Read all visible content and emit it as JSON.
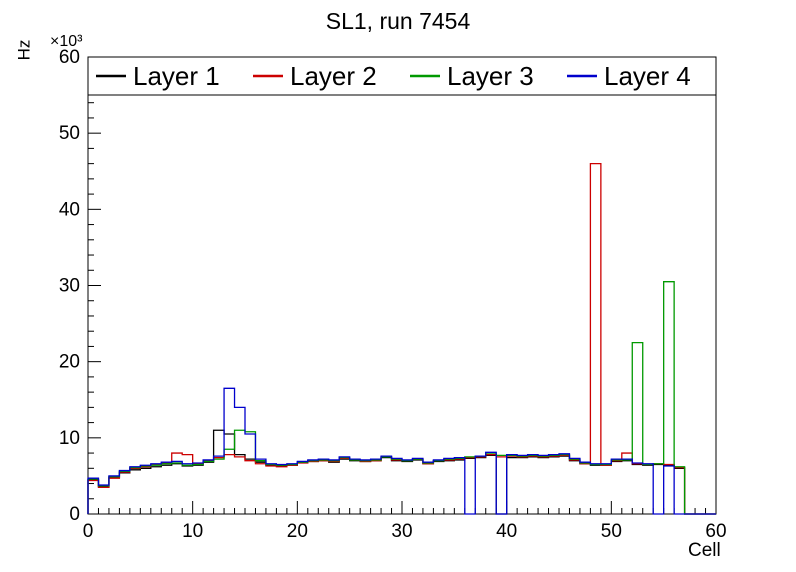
{
  "chart_data": {
    "type": "line",
    "style": "histogram-step",
    "title": "SL1, run 7454",
    "xlabel": "Cell",
    "ylabel": "Hz",
    "y_multiplier": "×10³",
    "xlim": [
      0,
      60
    ],
    "ylim": [
      0,
      60
    ],
    "x_ticks": [
      0,
      10,
      20,
      30,
      40,
      50,
      60
    ],
    "y_ticks": [
      0,
      10,
      20,
      30,
      40,
      50,
      60
    ],
    "bin_width": 1,
    "legend_position": "top",
    "grid": false,
    "series": [
      {
        "name": "Layer 1",
        "color": "#000000",
        "values": [
          4.5,
          3.6,
          4.8,
          5.4,
          5.8,
          6.0,
          6.2,
          6.4,
          6.6,
          6.3,
          6.4,
          6.8,
          11.0,
          10.5,
          7.8,
          7.2,
          6.8,
          6.4,
          6.3,
          6.4,
          6.8,
          6.9,
          7.0,
          6.8,
          7.2,
          7.0,
          6.9,
          7.0,
          7.4,
          7.0,
          6.9,
          7.1,
          6.6,
          6.9,
          7.0,
          7.1,
          7.3,
          7.4,
          7.7,
          0.0,
          7.4,
          7.4,
          7.5,
          7.4,
          7.5,
          7.6,
          7.0,
          6.6,
          6.4,
          6.4,
          6.9,
          7.0,
          6.5,
          6.4,
          6.5,
          6.4,
          6.0,
          0,
          0,
          0
        ]
      },
      {
        "name": "Layer 2",
        "color": "#cc0000",
        "values": [
          4.4,
          3.5,
          4.7,
          5.5,
          6.0,
          6.2,
          6.5,
          6.7,
          8.0,
          7.8,
          6.6,
          7.0,
          7.4,
          7.8,
          7.5,
          7.0,
          6.6,
          6.3,
          6.2,
          6.4,
          6.7,
          6.9,
          7.0,
          6.9,
          7.3,
          7.1,
          6.9,
          7.0,
          7.5,
          7.1,
          7.0,
          7.2,
          6.6,
          7.0,
          7.1,
          7.2,
          7.4,
          7.5,
          7.8,
          7.5,
          7.6,
          7.5,
          7.6,
          7.5,
          7.6,
          7.7,
          7.1,
          6.6,
          46.0,
          6.4,
          7.0,
          8.0,
          6.6,
          6.5,
          6.6,
          6.5,
          6.1,
          0,
          0,
          0
        ]
      },
      {
        "name": "Layer 3",
        "color": "#009900",
        "values": [
          4.6,
          3.7,
          4.9,
          5.6,
          6.1,
          6.3,
          6.4,
          6.6,
          6.7,
          6.4,
          6.5,
          6.9,
          7.2,
          8.5,
          11.0,
          10.8,
          7.0,
          6.5,
          6.4,
          6.5,
          6.8,
          7.0,
          7.1,
          7.0,
          7.4,
          7.1,
          7.0,
          7.1,
          7.5,
          7.2,
          7.0,
          7.2,
          6.7,
          7.0,
          7.2,
          7.3,
          7.5,
          7.6,
          8.0,
          7.7,
          7.7,
          7.6,
          7.7,
          7.6,
          7.7,
          7.8,
          7.2,
          6.7,
          6.5,
          6.5,
          7.1,
          7.1,
          22.5,
          6.5,
          6.6,
          30.5,
          6.2,
          0,
          0,
          0
        ]
      },
      {
        "name": "Layer 4",
        "color": "#0000cc",
        "values": [
          4.7,
          3.8,
          5.0,
          5.7,
          6.2,
          6.4,
          6.6,
          6.8,
          6.9,
          6.6,
          6.7,
          7.1,
          7.6,
          16.5,
          14.0,
          10.5,
          7.2,
          6.6,
          6.5,
          6.6,
          6.9,
          7.1,
          7.2,
          7.1,
          7.5,
          7.2,
          7.1,
          7.2,
          7.6,
          7.3,
          7.1,
          7.3,
          6.8,
          7.1,
          7.3,
          7.4,
          0.0,
          7.6,
          8.1,
          0.0,
          7.8,
          7.7,
          7.8,
          7.7,
          7.8,
          7.9,
          7.3,
          6.8,
          6.6,
          6.6,
          7.2,
          7.2,
          6.7,
          6.6,
          0.0,
          6.3,
          0,
          0,
          0,
          0
        ]
      }
    ]
  }
}
